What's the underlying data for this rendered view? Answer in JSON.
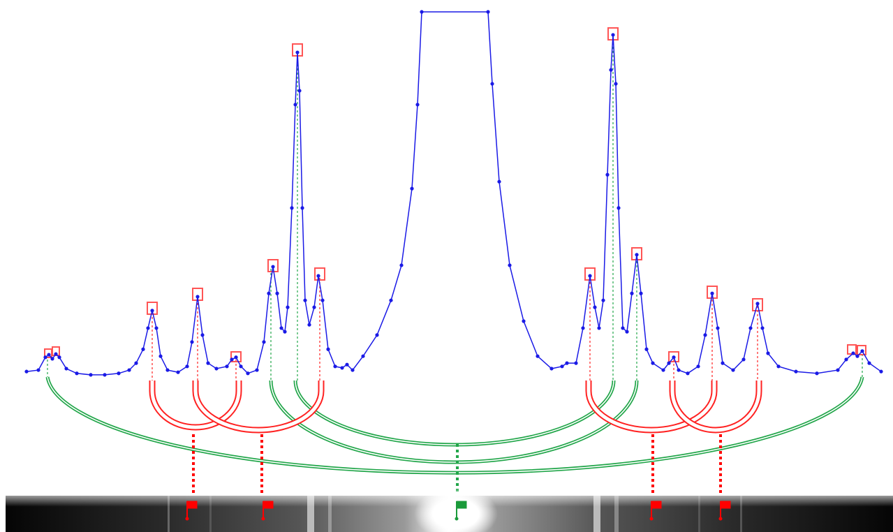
{
  "chart_data": {
    "type": "line",
    "color": "#1a1ae6",
    "xlim": [
      -613,
      611
    ],
    "ylim": [
      0,
      100
    ],
    "x": [
      -613,
      -596,
      -586,
      -581,
      -576,
      -571,
      -566,
      -556,
      -541,
      -521,
      -501,
      -481,
      -466,
      -456,
      -446,
      -439,
      -433,
      -427,
      -421,
      -411,
      -396,
      -383,
      -376,
      -368,
      -361,
      -353,
      -341,
      -326,
      -319,
      -313,
      -306,
      -296,
      -283,
      -273,
      -266,
      -260,
      -254,
      -248,
      -243,
      -239,
      -233,
      -228,
      -225,
      -222,
      -218,
      -214,
      -208,
      -201,
      -195,
      -189,
      -181,
      -171,
      -161,
      -154,
      -146,
      -131,
      -111,
      -91,
      -76,
      -61,
      -53,
      -47,
      48,
      54,
      64,
      79,
      99,
      119,
      139,
      154,
      161,
      174,
      184,
      194,
      201,
      207,
      213,
      219,
      224,
      227,
      231,
      235,
      241,
      247,
      254,
      261,
      267,
      275,
      284,
      299,
      307,
      314,
      321,
      334,
      349,
      359,
      369,
      377,
      384,
      399,
      414,
      424,
      434,
      441,
      449,
      464,
      489,
      519,
      549,
      561,
      571,
      577,
      584,
      594,
      611
    ],
    "values": [
      1.5,
      1.9,
      5.4,
      6.1,
      5,
      6.3,
      5.4,
      2.3,
      1,
      0.6,
      0.6,
      1,
      1.9,
      3.8,
      7.6,
      13.4,
      18.2,
      13.4,
      5.7,
      1.9,
      1.3,
      2.9,
      9.6,
      22,
      11.5,
      3.8,
      2.3,
      2.9,
      4.8,
      5.4,
      2.9,
      1,
      1.9,
      9.6,
      22.9,
      30.2,
      22.9,
      13.4,
      12.4,
      19.1,
      46.3,
      74.6,
      88.9,
      78.4,
      46.3,
      21,
      14.3,
      19.1,
      27.7,
      21,
      7.6,
      2.9,
      2.5,
      3.4,
      1.9,
      5.7,
      11.5,
      21,
      30.6,
      51.6,
      74.6,
      100,
      100,
      80.3,
      53.5,
      30.6,
      15.3,
      5.7,
      2.3,
      2.9,
      3.8,
      3.8,
      13.4,
      27.7,
      19.1,
      13.4,
      21,
      55.4,
      84.1,
      93.7,
      80.3,
      46.3,
      13.4,
      12.4,
      22.9,
      33.5,
      22.9,
      7.6,
      3.8,
      1.9,
      3.8,
      5.4,
      1.9,
      1,
      2.9,
      11.5,
      22.9,
      13.4,
      3.8,
      1.9,
      4.8,
      13.4,
      20.1,
      13.4,
      6.5,
      2.9,
      1.5,
      1,
      1.9,
      4.8,
      6.5,
      5.7,
      7.1,
      3.8,
      1.5
    ]
  }
}
